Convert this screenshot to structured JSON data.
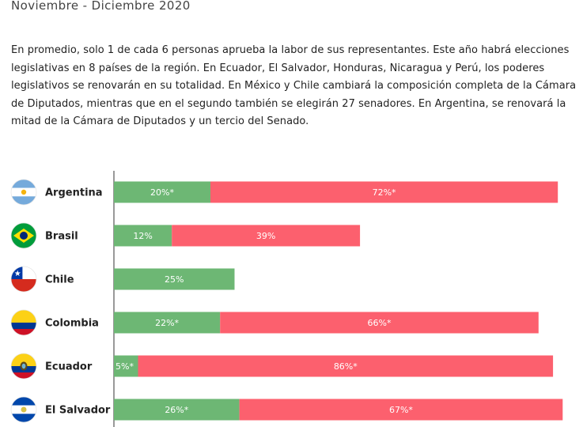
{
  "header": {
    "subtitle": "Noviembre - Diciembre 2020",
    "description": "En promedio, solo 1 de cada 6 personas aprueba la labor de sus representantes.  Este año habrá elecciones legislativas en 8 países de la región. En Ecuador, El Salvador, Honduras, Nicaragua y Perú, los poderes legislativos se renovarán en su totalidad. En México y Chile cambiará la composición completa de la Cámara de Diputados, mientras que en el segundo también se elegirán 27 senadores. En Argentina, se renovará la mitad de la Cámara de Diputados y un tercio del Senado."
  },
  "colors": {
    "approve": "#6db774",
    "disapprove": "#fc606e",
    "axis": "#333333",
    "bar_label": "#ffffff"
  },
  "chart_data": {
    "type": "bar",
    "orientation": "horizontal",
    "stacked": true,
    "categories": [
      "Argentina",
      "Brasil",
      "Chile",
      "Colombia",
      "Ecuador",
      "El Salvador"
    ],
    "flag_icons": [
      "argentina-flag-icon",
      "brazil-flag-icon",
      "chile-flag-icon",
      "colombia-flag-icon",
      "ecuador-flag-icon",
      "el-salvador-flag-icon"
    ],
    "series": [
      {
        "values": [
          20,
          12,
          25,
          22,
          5,
          26
        ],
        "labels": [
          "20%*",
          "12%",
          "25%",
          "22%*",
          "5%*",
          "26%*"
        ]
      },
      {
        "values": [
          72,
          39,
          null,
          66,
          86,
          67
        ],
        "labels": [
          "72%*",
          "39%",
          "",
          "66%*",
          "86%*",
          "67%*"
        ]
      }
    ],
    "xlim": [
      0,
      94
    ],
    "grid": false,
    "legend": "none"
  }
}
